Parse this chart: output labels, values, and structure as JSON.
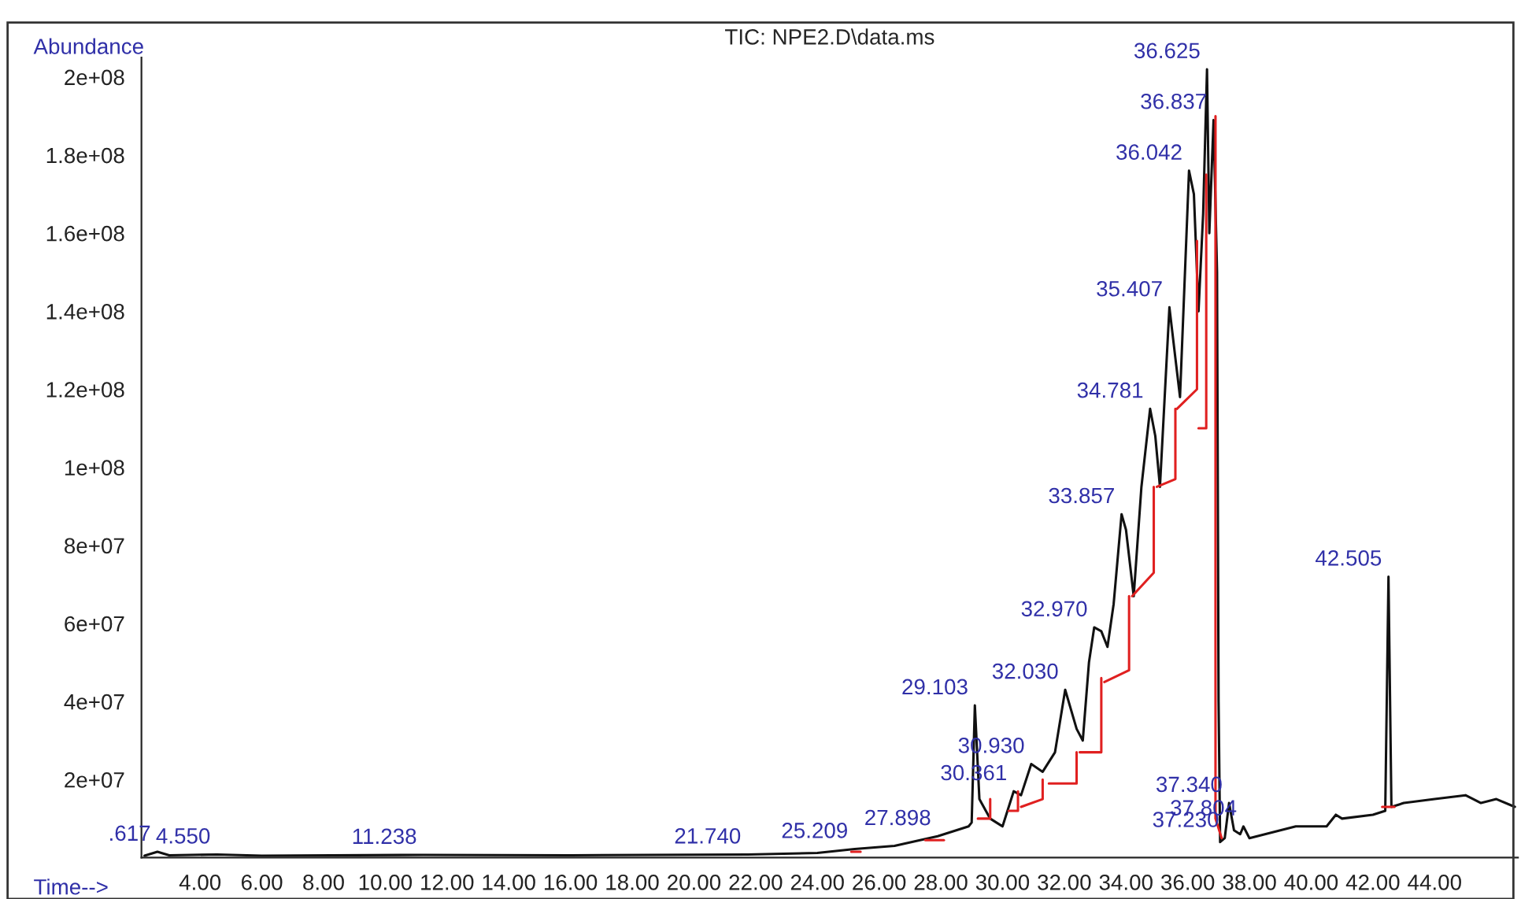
{
  "chart_data": {
    "type": "line",
    "title": "TIC: NPE2.D\\data.ms",
    "xlabel": "Time-->",
    "ylabel": "Abundance",
    "xlim": [
      2.1,
      46.7
    ],
    "ylim": [
      0,
      205000000
    ],
    "xticks": [
      {
        "value": 4,
        "label": "4.00"
      },
      {
        "value": 6,
        "label": "6.00"
      },
      {
        "value": 8,
        "label": "8.00"
      },
      {
        "value": 10,
        "label": "10.00"
      },
      {
        "value": 12,
        "label": "12.00"
      },
      {
        "value": 14,
        "label": "14.00"
      },
      {
        "value": 16,
        "label": "16.00"
      },
      {
        "value": 18,
        "label": "18.00"
      },
      {
        "value": 20,
        "label": "20.00"
      },
      {
        "value": 22,
        "label": "22.00"
      },
      {
        "value": 24,
        "label": "24.00"
      },
      {
        "value": 26,
        "label": "26.00"
      },
      {
        "value": 28,
        "label": "28.00"
      },
      {
        "value": 30,
        "label": "30.00"
      },
      {
        "value": 32,
        "label": "32.00"
      },
      {
        "value": 34,
        "label": "34.00"
      },
      {
        "value": 36,
        "label": "36.00"
      },
      {
        "value": 38,
        "label": "38.00"
      },
      {
        "value": 40,
        "label": "40.00"
      },
      {
        "value": 42,
        "label": "42.00"
      },
      {
        "value": 44,
        "label": "44.00"
      }
    ],
    "yticks": [
      {
        "value": 20000000,
        "label": "2e+07"
      },
      {
        "value": 40000000,
        "label": "4e+07"
      },
      {
        "value": 60000000,
        "label": "6e+07"
      },
      {
        "value": 80000000,
        "label": "8e+07"
      },
      {
        "value": 100000000,
        "label": "1e+08"
      },
      {
        "value": 120000000,
        "label": "1.2e+08"
      },
      {
        "value": 140000000,
        "label": "1.4e+08"
      },
      {
        "value": 160000000,
        "label": "1.6e+08"
      },
      {
        "value": 180000000,
        "label": "1.8e+08"
      },
      {
        "value": 200000000,
        "label": "2e+08"
      }
    ],
    "grid": false,
    "legend": false,
    "marker": "none",
    "line_style": "solid",
    "series": [
      {
        "color": "#111111",
        "x": [
          2.2,
          2.617,
          3.0,
          4.55,
          6,
          11.238,
          16,
          21.74,
          24,
          25.209,
          26.5,
          27.898,
          28.9,
          29.0,
          29.103,
          29.25,
          29.6,
          30.0,
          30.361,
          30.6,
          30.93,
          31.3,
          31.7,
          32.03,
          32.4,
          32.6,
          32.8,
          32.97,
          33.2,
          33.4,
          33.6,
          33.857,
          34.0,
          34.25,
          34.5,
          34.781,
          34.95,
          35.1,
          35.407,
          35.6,
          35.75,
          36.042,
          36.2,
          36.35,
          36.5,
          36.625,
          36.7,
          36.837,
          36.95,
          37.0,
          37.05,
          37.2,
          37.34,
          37.5,
          37.7,
          37.804,
          38.0,
          38.5,
          39.5,
          40.5,
          40.8,
          41.0,
          42.0,
          42.4,
          42.505,
          42.6,
          43.0,
          44.0,
          45.0,
          45.5,
          46.0,
          46.6
        ],
        "values": [
          500000,
          1500000,
          600000,
          800000,
          500000,
          700000,
          600000,
          800000,
          1200000,
          2200000,
          3000000,
          5500000,
          8000000,
          9000000,
          39000000,
          15000000,
          10000000,
          8000000,
          17000000,
          16000000,
          24000000,
          22000000,
          27000000,
          43000000,
          33000000,
          30000000,
          50000000,
          59000000,
          58000000,
          54000000,
          65000000,
          88000000,
          84000000,
          67000000,
          95000000,
          115000000,
          108000000,
          95000000,
          141000000,
          128000000,
          118000000,
          176000000,
          170000000,
          140000000,
          165000000,
          202000000,
          160000000,
          189000000,
          150000000,
          40000000,
          4000000,
          5000000,
          14000000,
          7000000,
          6000000,
          8000000,
          5000000,
          6000000,
          8000000,
          8000000,
          11000000,
          10000000,
          11000000,
          12000000,
          72000000,
          13000000,
          14000000,
          15000000,
          16000000,
          14000000,
          15000000,
          13000000
        ]
      },
      {
        "color": "#e02020",
        "x": [
          25.1,
          25.4
        ],
        "values": [
          1500000,
          1500000
        ]
      },
      {
        "color": "#e02020",
        "x": [
          27.5,
          28.1
        ],
        "values": [
          4500000,
          4500000
        ]
      },
      {
        "color": "#e02020",
        "x": [
          29.2,
          29.6,
          29.6
        ],
        "values": [
          10000000,
          10000000,
          15000000
        ]
      },
      {
        "color": "#e02020",
        "x": [
          30.2,
          30.5,
          30.5
        ],
        "values": [
          12000000,
          12000000,
          17000000
        ]
      },
      {
        "color": "#e02020",
        "x": [
          30.6,
          31.3,
          31.3
        ],
        "values": [
          13000000,
          15000000,
          20000000
        ]
      },
      {
        "color": "#e02020",
        "x": [
          31.5,
          32.4,
          32.4
        ],
        "values": [
          19000000,
          19000000,
          27000000
        ]
      },
      {
        "color": "#e02020",
        "x": [
          32.5,
          33.2,
          33.2
        ],
        "values": [
          27000000,
          27000000,
          46000000
        ]
      },
      {
        "color": "#e02020",
        "x": [
          33.3,
          34.1,
          34.1
        ],
        "values": [
          45000000,
          48000000,
          67000000
        ]
      },
      {
        "color": "#e02020",
        "x": [
          34.2,
          34.9,
          34.9
        ],
        "values": [
          67000000,
          73000000,
          95000000
        ]
      },
      {
        "color": "#e02020",
        "x": [
          35.0,
          35.6,
          35.6
        ],
        "values": [
          95000000,
          97000000,
          115000000
        ]
      },
      {
        "color": "#e02020",
        "x": [
          35.65,
          36.3,
          36.3
        ],
        "values": [
          115000000,
          120000000,
          158000000
        ]
      },
      {
        "color": "#e02020",
        "x": [
          36.35,
          36.6,
          36.6
        ],
        "values": [
          110000000,
          110000000,
          175000000
        ]
      },
      {
        "color": "#e02020",
        "x": [
          36.9,
          36.9,
          37.1
        ],
        "values": [
          190000000,
          10000000,
          5000000
        ]
      },
      {
        "color": "#e02020",
        "x": [
          42.3,
          42.7
        ],
        "values": [
          13000000,
          13000000
        ]
      }
    ],
    "annotations": [
      {
        "text": ".617",
        "x": 2.617,
        "y": 1500000
      },
      {
        "text": "4.550",
        "x": 4.55,
        "y": 800000
      },
      {
        "text": "11.238",
        "x": 11.238,
        "y": 700000
      },
      {
        "text": "21.740",
        "x": 21.74,
        "y": 800000
      },
      {
        "text": "25.209",
        "x": 25.209,
        "y": 2200000
      },
      {
        "text": "27.898",
        "x": 27.898,
        "y": 5500000
      },
      {
        "text": "29.103",
        "x": 29.103,
        "y": 39000000
      },
      {
        "text": "30.361",
        "x": 30.361,
        "y": 17000000
      },
      {
        "text": "30.930",
        "x": 30.93,
        "y": 24000000
      },
      {
        "text": "32.030",
        "x": 32.03,
        "y": 43000000
      },
      {
        "text": "32.970",
        "x": 32.97,
        "y": 59000000
      },
      {
        "text": "33.857",
        "x": 33.857,
        "y": 88000000
      },
      {
        "text": "34.781",
        "x": 34.781,
        "y": 115000000
      },
      {
        "text": "35.407",
        "x": 35.407,
        "y": 141000000
      },
      {
        "text": "36.042",
        "x": 36.042,
        "y": 176000000
      },
      {
        "text": "36.625",
        "x": 36.625,
        "y": 202000000
      },
      {
        "text": "36.837",
        "x": 36.837,
        "y": 189000000
      },
      {
        "text": "37.340",
        "x": 37.34,
        "y": 14000000
      },
      {
        "text": "37.230",
        "x": 37.23,
        "y": 5000000
      },
      {
        "text": "37.804",
        "x": 37.804,
        "y": 8000000
      },
      {
        "text": "42.505",
        "x": 42.505,
        "y": 72000000
      }
    ]
  }
}
